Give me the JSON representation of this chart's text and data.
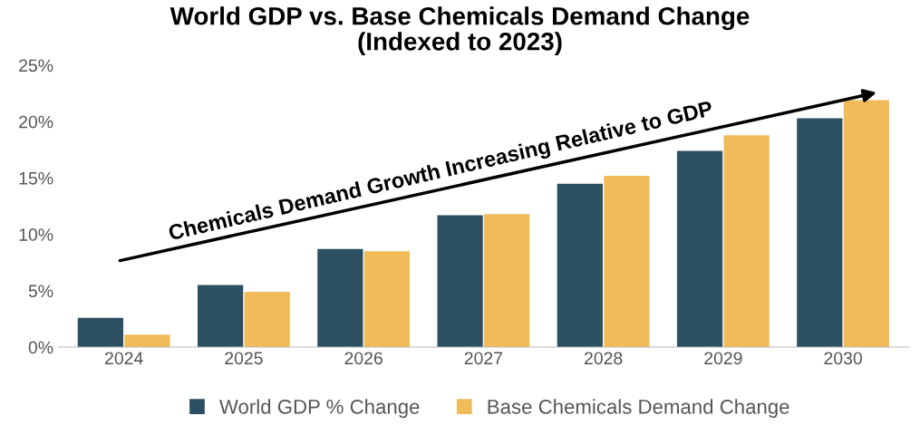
{
  "chart_data": {
    "type": "bar",
    "title": "World GDP vs. Base Chemicals Demand Change\n(Indexed to 2023)",
    "categories": [
      "2024",
      "2025",
      "2026",
      "2027",
      "2028",
      "2029",
      "2030"
    ],
    "series": [
      {
        "name": "World GDP % Change",
        "color": "#2c4f62",
        "values": [
          2.6,
          5.5,
          8.7,
          11.7,
          14.5,
          17.4,
          20.3
        ]
      },
      {
        "name": "Base Chemicals Demand Change",
        "color": "#f0bb58",
        "values": [
          1.1,
          4.9,
          8.5,
          11.8,
          15.2,
          18.8,
          21.9
        ]
      }
    ],
    "ylim": [
      0,
      25
    ],
    "yticks": [
      {
        "value": 0,
        "label": "0%"
      },
      {
        "value": 5,
        "label": "5%"
      },
      {
        "value": 10,
        "label": "10%"
      },
      {
        "value": 15,
        "label": "15%"
      },
      {
        "value": 20,
        "label": "20%"
      },
      {
        "value": 25,
        "label": "25%"
      }
    ],
    "annotations": [
      "Chemicals Demand Growth Increasing Relative to GDP"
    ],
    "grid": false,
    "legend": "bottom"
  }
}
